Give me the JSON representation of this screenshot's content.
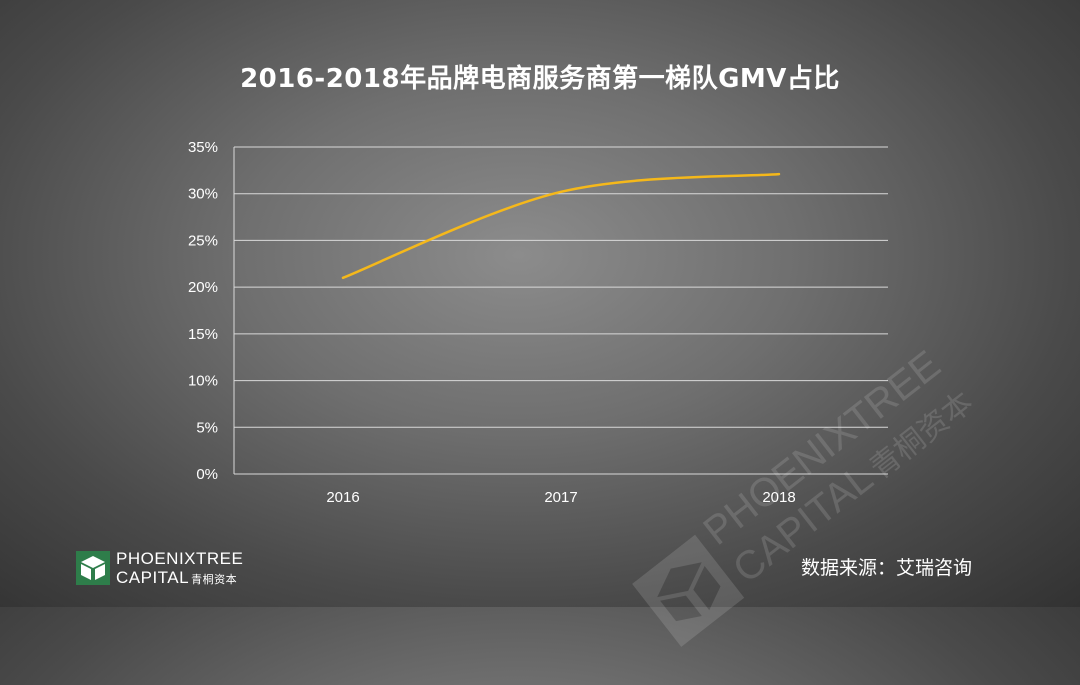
{
  "title": "2016-2018年品牌电商服务商第一梯队GMV占比",
  "source": "数据来源：艾瑞咨询",
  "logo": {
    "line1": "PHOENIXTREE",
    "line2": "CAPITAL",
    "cn": "青桐资本",
    "icon": "phoenixtree-logo-icon"
  },
  "watermark": {
    "line1": "PHOENIXTREE",
    "line2": "CAPITAL",
    "cn": "青桐资本"
  },
  "colors": {
    "line": "#f5b81a",
    "grid": "#d9d9d9",
    "text": "#ffffff",
    "logo_green": "#2e7d4a"
  },
  "chart_data": {
    "type": "line",
    "title": "2016-2018年品牌电商服务商第一梯队GMV占比",
    "categories": [
      "2016",
      "2017",
      "2018"
    ],
    "series": [
      {
        "values": [
          21,
          30.2,
          32.1
        ]
      }
    ],
    "y_ticks": [
      "0%",
      "5%",
      "10%",
      "15%",
      "20%",
      "25%",
      "30%",
      "35%"
    ],
    "ylim": [
      0,
      35
    ],
    "y_unit": "%",
    "grid": true,
    "smooth": true,
    "legend": "none"
  }
}
